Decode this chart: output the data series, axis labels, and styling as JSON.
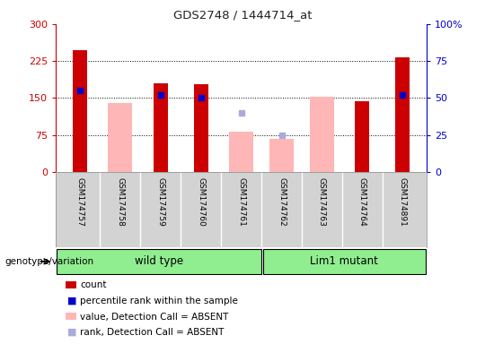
{
  "title": "GDS2748 / 1444714_at",
  "samples": [
    "GSM174757",
    "GSM174758",
    "GSM174759",
    "GSM174760",
    "GSM174761",
    "GSM174762",
    "GSM174763",
    "GSM174764",
    "GSM174891"
  ],
  "count": [
    248,
    null,
    180,
    178,
    null,
    null,
    null,
    143,
    232
  ],
  "percentile_rank": [
    165,
    null,
    157,
    150,
    null,
    null,
    null,
    null,
    157
  ],
  "absent_value": [
    null,
    140,
    null,
    null,
    82,
    68,
    153,
    null,
    null
  ],
  "absent_rank": [
    null,
    null,
    null,
    null,
    120,
    75,
    null,
    null,
    null
  ],
  "wt_count": 5,
  "lm_count": 4,
  "groups": [
    {
      "label": "wild type",
      "color": "#90ee90"
    },
    {
      "label": "Lim1 mutant",
      "color": "#90ee90"
    }
  ],
  "ylim_left": [
    0,
    300
  ],
  "ylim_right": [
    0,
    100
  ],
  "yticks_left": [
    0,
    75,
    150,
    225,
    300
  ],
  "yticks_right": [
    0,
    25,
    50,
    75,
    100
  ],
  "yticklabels_right": [
    "0",
    "25",
    "50",
    "75",
    "100%"
  ],
  "bar_color_count": "#cc0000",
  "bar_color_absent_value": "#ffb6b6",
  "dot_color_rank": "#0000cc",
  "dot_color_absent_rank": "#aaaadd",
  "title_color": "#222222",
  "left_tick_color": "#cc0000",
  "right_tick_color": "#0000cc",
  "background_label": "#d3d3d3",
  "background_geno": "#90ee90",
  "legend_items": [
    {
      "color": "#cc0000",
      "type": "rect",
      "label": "count"
    },
    {
      "color": "#0000cc",
      "type": "square",
      "label": "percentile rank within the sample"
    },
    {
      "color": "#ffb6b6",
      "type": "rect",
      "label": "value, Detection Call = ABSENT"
    },
    {
      "color": "#aaaadd",
      "type": "square",
      "label": "rank, Detection Call = ABSENT"
    }
  ]
}
